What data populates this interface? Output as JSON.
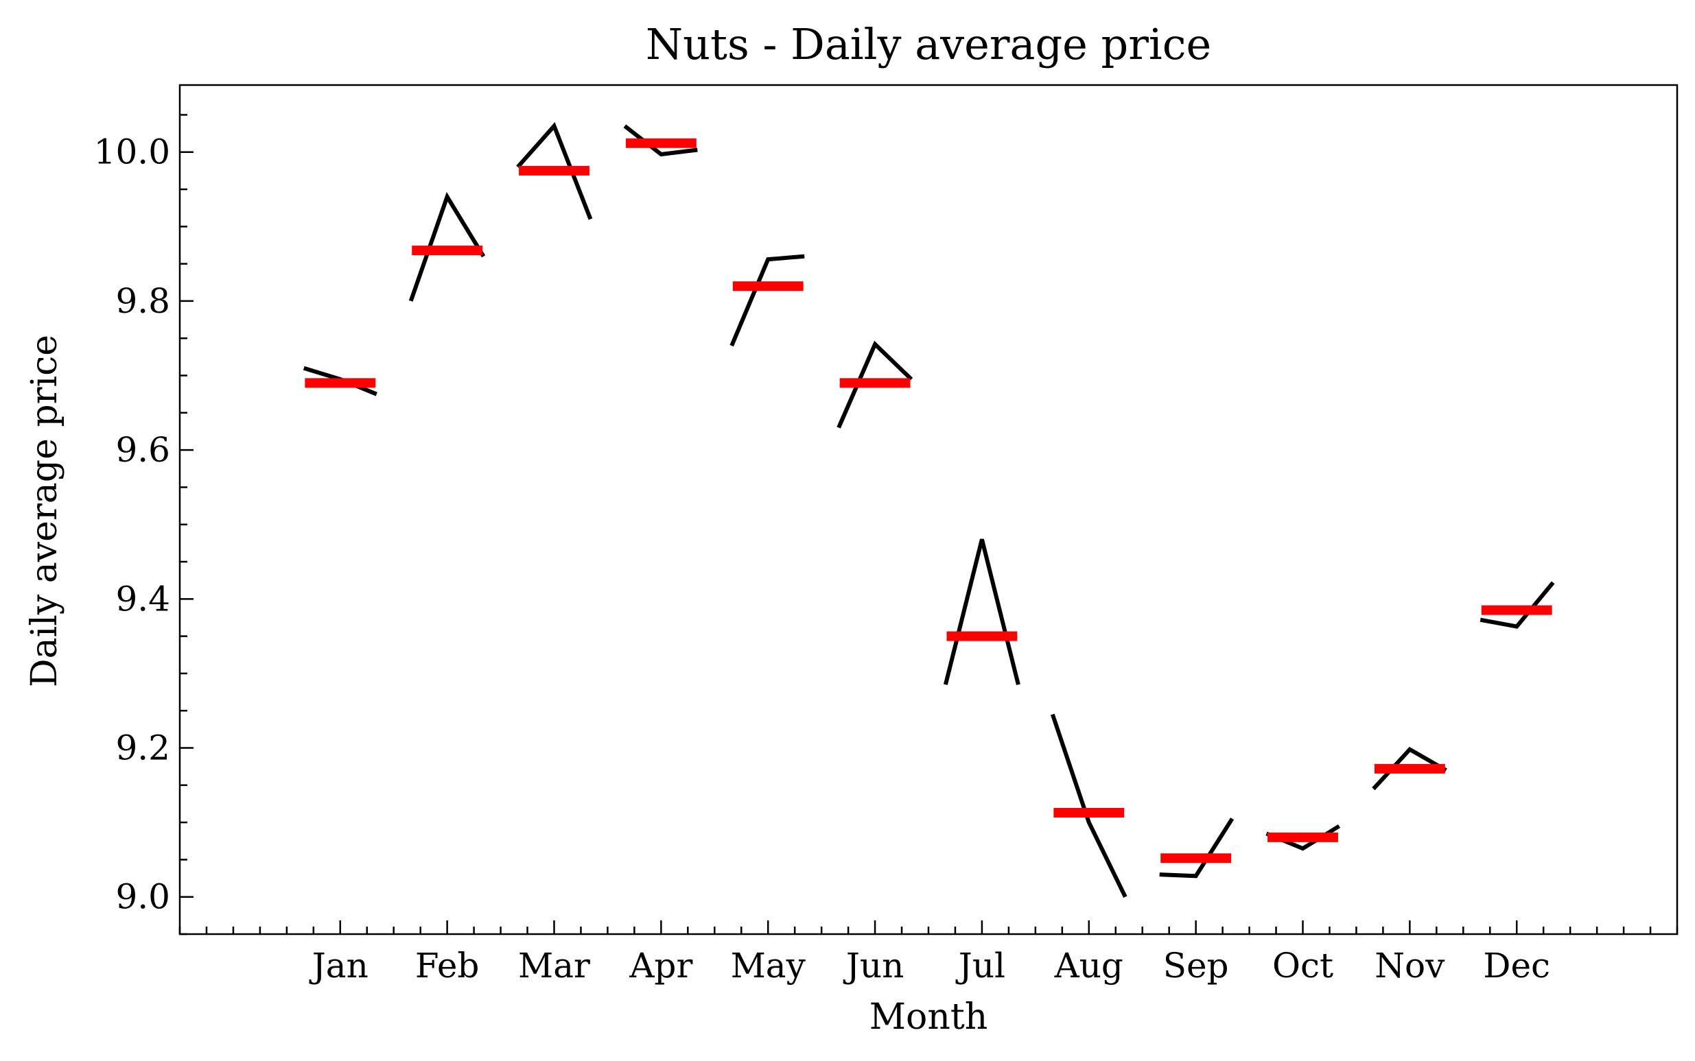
{
  "chart_data": {
    "type": "line",
    "title": "Nuts - Daily average price",
    "xlabel": "Month",
    "ylabel": "Daily average price",
    "categories": [
      "Jan",
      "Feb",
      "Mar",
      "Apr",
      "May",
      "Jun",
      "Jul",
      "Aug",
      "Sep",
      "Oct",
      "Nov",
      "Dec"
    ],
    "ylim": [
      8.95,
      10.09
    ],
    "yticks": [
      "9.0",
      "9.2",
      "9.4",
      "9.6",
      "9.8",
      "10.0"
    ],
    "grid": false,
    "series": [
      {
        "values": [
          [
            9.71,
            9.695,
            9.675
          ],
          [
            9.8,
            9.94,
            9.86
          ],
          [
            9.98,
            10.035,
            9.91
          ],
          [
            10.035,
            9.997,
            10.003
          ],
          [
            9.74,
            9.856,
            9.86
          ],
          [
            9.63,
            9.742,
            9.695
          ],
          [
            9.285,
            9.48,
            9.285
          ],
          [
            9.245,
            9.1,
            9.0
          ],
          [
            9.03,
            9.028,
            9.105
          ],
          [
            9.085,
            9.065,
            9.095
          ],
          [
            9.145,
            9.198,
            9.17
          ],
          [
            9.372,
            9.363,
            9.422
          ]
        ],
        "color": "#000000"
      },
      {
        "values": [
          9.69,
          9.868,
          9.975,
          10.012,
          9.82,
          9.69,
          9.35,
          9.113,
          9.052,
          9.08,
          9.172,
          9.385
        ],
        "color": "#ff0000"
      }
    ]
  }
}
